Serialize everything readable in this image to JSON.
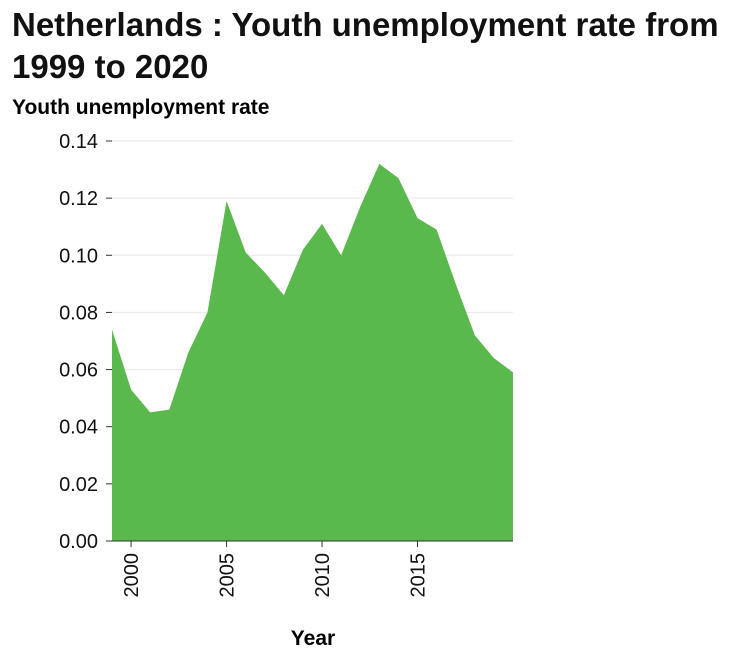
{
  "chart_data": {
    "type": "area",
    "title": "Netherlands : Youth unemployment rate from 1999 to 2020",
    "xlabel": "Year",
    "ylabel": "Youth unemployment rate",
    "xlim": [
      1999,
      2020
    ],
    "ylim": [
      0,
      0.14
    ],
    "x_ticks": [
      2000,
      2005,
      2010,
      2015
    ],
    "y_ticks": [
      "0.00",
      "0.02",
      "0.04",
      "0.06",
      "0.08",
      "0.10",
      "0.12",
      "0.14"
    ],
    "grid": "horizontal",
    "fill_color": "#59b94d",
    "grid_color": "#e6e6e6",
    "x": [
      1999,
      2000,
      2001,
      2002,
      2003,
      2004,
      2005,
      2006,
      2007,
      2008,
      2009,
      2010,
      2011,
      2012,
      2013,
      2014,
      2015,
      2016,
      2017,
      2018,
      2019,
      2020
    ],
    "values": [
      0.074,
      0.053,
      0.045,
      0.046,
      0.066,
      0.08,
      0.119,
      0.101,
      0.094,
      0.086,
      0.102,
      0.111,
      0.1,
      0.117,
      0.132,
      0.127,
      0.113,
      0.109,
      0.09,
      0.072,
      0.064,
      0.059
    ]
  }
}
